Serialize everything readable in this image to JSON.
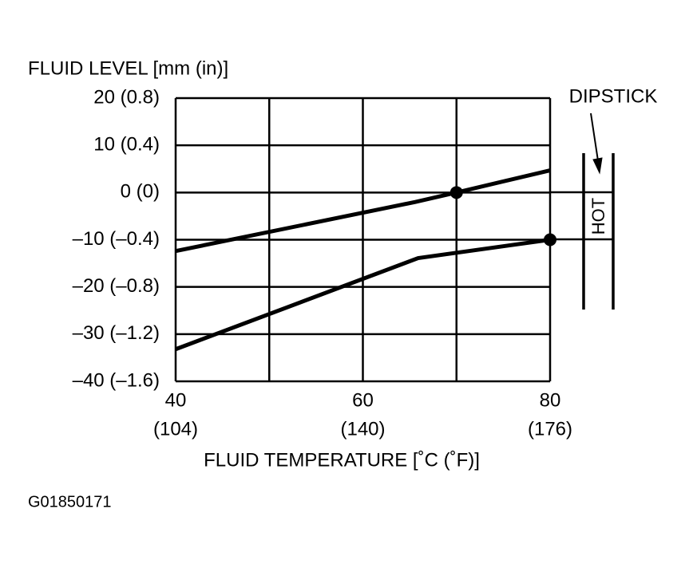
{
  "chart_data": {
    "type": "line",
    "y_label": "FLUID LEVEL [mm (in)]",
    "x_label": "FLUID TEMPERATURE [˚C (˚F)]",
    "annotation": "DIPSTICK",
    "dipstick_label": "HOT",
    "figure_id": "G01850171",
    "series": [
      {
        "color": "#000000",
        "x": [
          40,
          65.6,
          70,
          80
        ],
        "values": [
          -12.4,
          -2,
          0,
          4.7
        ],
        "marker_at": [
          2
        ]
      },
      {
        "color": "#000000",
        "x": [
          40,
          65.9,
          80
        ],
        "values": [
          -33.2,
          -13.9,
          -10
        ],
        "marker_at": [
          2
        ]
      }
    ],
    "xlim": [
      40,
      80
    ],
    "ylim": [
      -40,
      20
    ],
    "xticks": [
      40,
      60,
      80
    ],
    "xtick_sublabels": [
      "(104)",
      "(140)",
      "(176)"
    ],
    "x_gridlines": [
      50,
      70
    ],
    "yticks": [
      {
        "value": -40,
        "label": "–40 (–1.6)"
      },
      {
        "value": -30,
        "label": "–30 (–1.2)"
      },
      {
        "value": -20,
        "label": "–20 (–0.8)"
      },
      {
        "value": -10,
        "label": "–10 (–0.4)"
      },
      {
        "value": 0,
        "label": "0 (0)"
      },
      {
        "value": 10,
        "label": "10 (0.4)"
      },
      {
        "value": 20,
        "label": "20 (0.8)"
      }
    ],
    "grid": true
  }
}
